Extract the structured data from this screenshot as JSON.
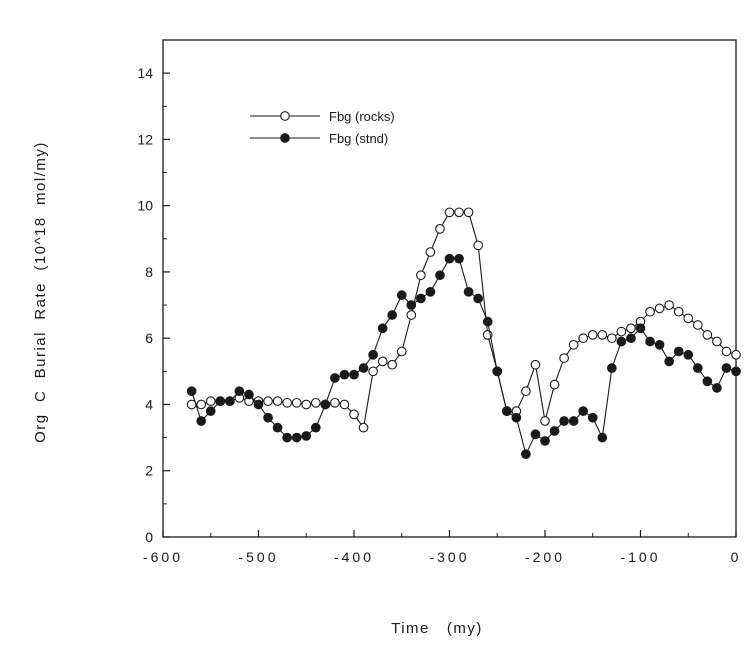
{
  "chart_data": {
    "type": "line",
    "title": "",
    "xlabel": "Time   (my)",
    "ylabel": "Org  C  Burial  Rate  (10^18  mol/my)",
    "xlim": [
      -600,
      0
    ],
    "ylim": [
      0,
      15
    ],
    "x_ticks": [
      -600,
      -500,
      -400,
      -300,
      -200,
      -100,
      0
    ],
    "x_tick_labels": [
      "-600",
      "-500",
      "-400",
      "-300",
      "-200",
      "-100",
      "0"
    ],
    "y_ticks": [
      0,
      2,
      4,
      6,
      8,
      10,
      12,
      14
    ],
    "y_tick_labels": [
      "0",
      "2",
      "4",
      "6",
      "8",
      "10",
      "12",
      "14"
    ],
    "grid": false,
    "legend_position": "top-left",
    "series": [
      {
        "name": "Fbg (rocks)",
        "marker": "open-circle",
        "x": [
          -570,
          -560,
          -550,
          -540,
          -530,
          -520,
          -510,
          -500,
          -490,
          -480,
          -470,
          -460,
          -450,
          -440,
          -430,
          -420,
          -410,
          -400,
          -390,
          -380,
          -370,
          -360,
          -350,
          -340,
          -330,
          -320,
          -310,
          -300,
          -290,
          -280,
          -270,
          -260,
          -250,
          -240,
          -230,
          -220,
          -210,
          -200,
          -190,
          -180,
          -170,
          -160,
          -150,
          -140,
          -130,
          -120,
          -110,
          -100,
          -90,
          -80,
          -70,
          -60,
          -50,
          -40,
          -30,
          -20,
          -10,
          0
        ],
        "y": [
          4.0,
          4.0,
          4.1,
          4.1,
          4.1,
          4.2,
          4.1,
          4.1,
          4.1,
          4.1,
          4.05,
          4.05,
          4.0,
          4.05,
          4.0,
          4.05,
          4.0,
          3.7,
          3.3,
          5.0,
          5.3,
          5.2,
          5.6,
          6.7,
          7.9,
          8.6,
          9.3,
          9.8,
          9.8,
          9.8,
          8.8,
          6.1,
          5.0,
          3.8,
          3.8,
          4.4,
          5.2,
          3.5,
          4.6,
          5.4,
          5.8,
          6.0,
          6.1,
          6.1,
          6.0,
          6.2,
          6.3,
          6.5,
          6.8,
          6.9,
          7.0,
          6.8,
          6.6,
          6.4,
          6.1,
          5.9,
          5.6,
          5.5
        ]
      },
      {
        "name": "Fbg (stnd)",
        "marker": "filled-circle",
        "x": [
          -570,
          -560,
          -550,
          -540,
          -530,
          -520,
          -510,
          -500,
          -490,
          -480,
          -470,
          -460,
          -450,
          -440,
          -430,
          -420,
          -410,
          -400,
          -390,
          -380,
          -370,
          -360,
          -350,
          -340,
          -330,
          -320,
          -310,
          -300,
          -290,
          -280,
          -270,
          -260,
          -250,
          -240,
          -230,
          -220,
          -210,
          -200,
          -190,
          -180,
          -170,
          -160,
          -150,
          -140,
          -130,
          -120,
          -110,
          -100,
          -90,
          -80,
          -70,
          -60,
          -50,
          -40,
          -30,
          -20,
          -10,
          0
        ],
        "y": [
          4.4,
          3.5,
          3.8,
          4.1,
          4.1,
          4.4,
          4.3,
          4.0,
          3.6,
          3.3,
          3.0,
          3.0,
          3.05,
          3.3,
          4.0,
          4.8,
          4.9,
          4.9,
          5.1,
          5.5,
          6.3,
          6.7,
          7.3,
          7.0,
          7.2,
          7.4,
          7.9,
          8.4,
          8.4,
          7.4,
          7.2,
          6.5,
          5.0,
          3.8,
          3.6,
          2.5,
          3.1,
          2.9,
          3.2,
          3.5,
          3.5,
          3.8,
          3.6,
          3.0,
          5.1,
          5.9,
          6.0,
          6.3,
          5.9,
          5.8,
          5.3,
          5.6,
          5.5,
          5.1,
          4.7,
          4.5,
          5.1,
          5.0
        ]
      }
    ]
  }
}
